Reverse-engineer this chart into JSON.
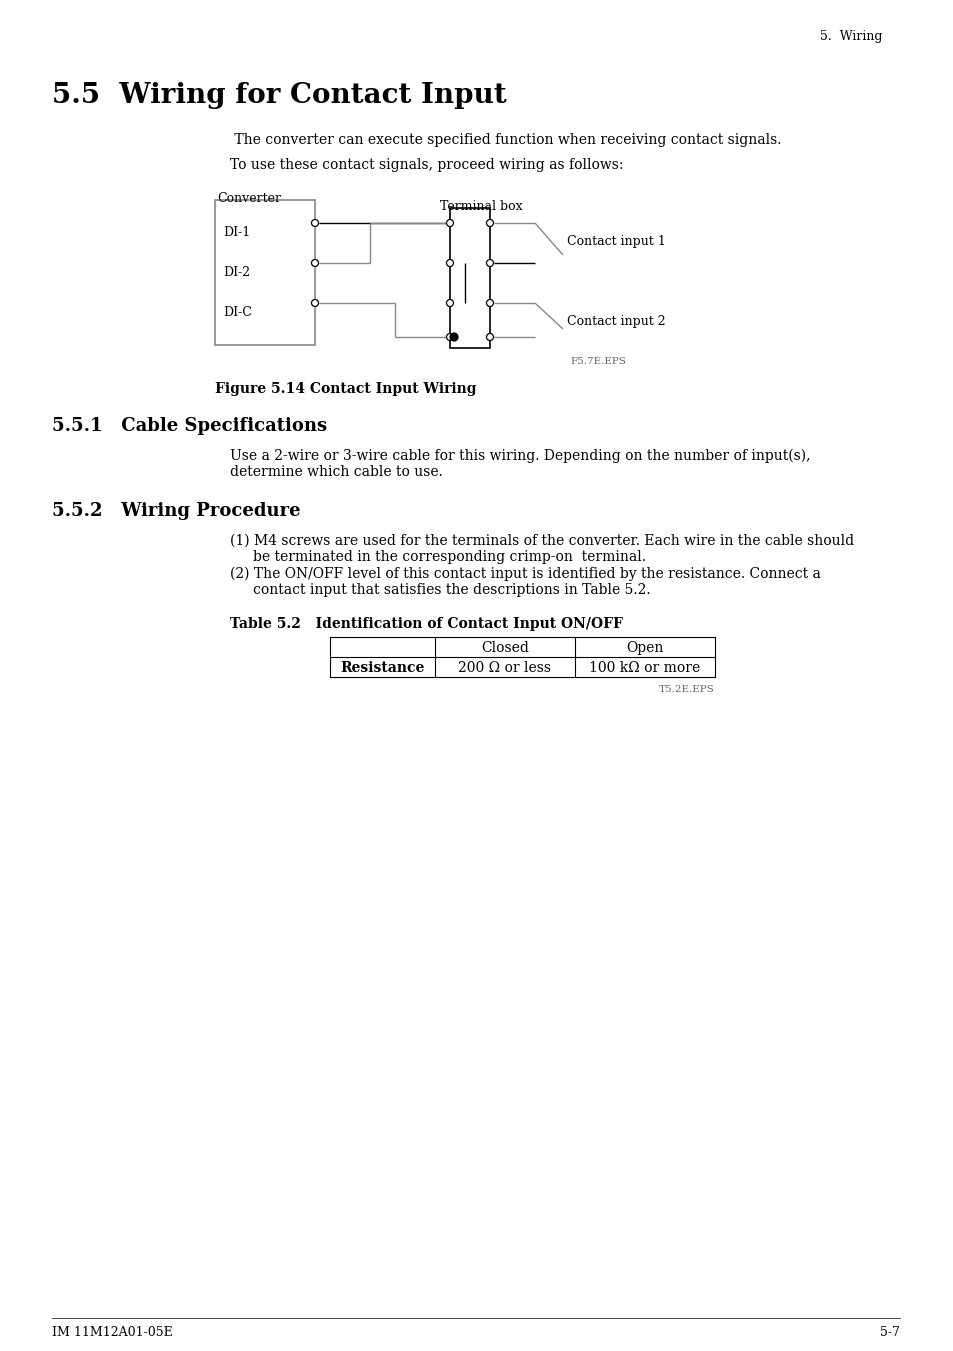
{
  "page_header_right": "5.  Wiring",
  "section_title": "5.5  Wiring for Contact Input",
  "para1": " The converter can execute specified function when receiving contact signals.",
  "para2": "To use these contact signals, proceed wiring as follows:",
  "fig_caption": "Figure 5.14 Contact Input Wiring",
  "fig_label": "F5.7E.EPS",
  "subsec1_title": "5.5.1   Cable Specifications",
  "subsec1_body1": "Use a 2-wire or 3-wire cable for this wiring. Depending on the number of input(s),",
  "subsec1_body2": "determine which cable to use.",
  "subsec2_title": "5.5.2   Wiring Procedure",
  "proc1_line1": "(1) M4 screws are used for the terminals of the converter. Each wire in the cable should",
  "proc1_line2": "be terminated in the corresponding crimp-on  terminal.",
  "proc2_line1": "(2) The ON/OFF level of this contact input is identified by the resistance. Connect a",
  "proc2_line2": "contact input that satisfies the descriptions in Table 5.2.",
  "table_title": "Table 5.2   Identification of Contact Input ON/OFF",
  "table_col1": "Closed",
  "table_col2": "Open",
  "table_row_label": "Resistance",
  "table_row_val1": "200 Ω or less",
  "table_row_val2": "100 kΩ or more",
  "table_label": "T5.2E.EPS",
  "footer_left": "IM 11M12A01-05E",
  "footer_right": "5-7",
  "bg_color": "#ffffff",
  "text_color": "#000000",
  "diagram_converter_label": "Converter",
  "diagram_terminal_label": "Terminal box",
  "diagram_di1": "DI-1",
  "diagram_di2": "DI-2",
  "diagram_dic": "DI-C",
  "diagram_contact1": "Contact input 1",
  "diagram_contact2": "Contact input 2"
}
